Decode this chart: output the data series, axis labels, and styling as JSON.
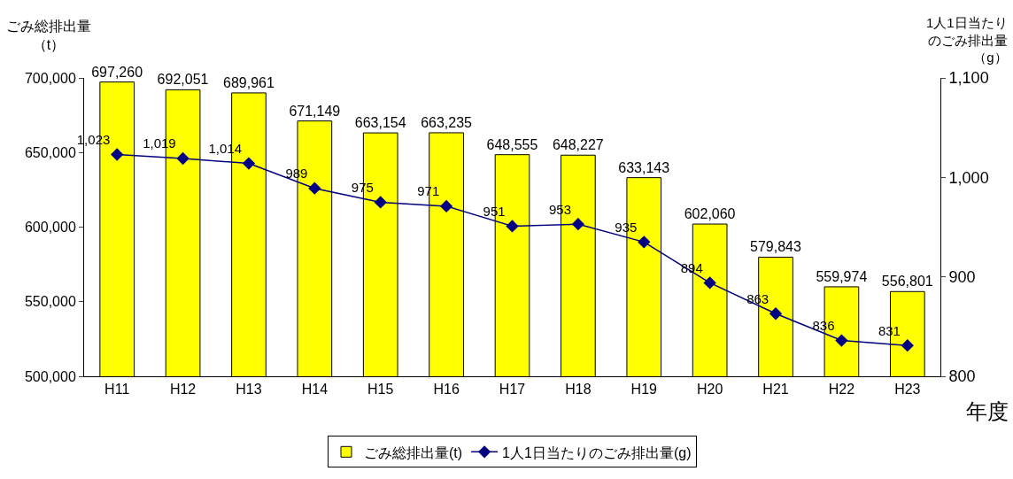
{
  "chart_data": {
    "type": "bar",
    "ylabel": "ごみ総排出量（t）",
    "y2label": "1人1日当たりのごみ排出量（g）",
    "xlabel": "年度",
    "categories": [
      "H11",
      "H12",
      "H13",
      "H14",
      "H15",
      "H16",
      "H17",
      "H18",
      "H19",
      "H20",
      "H21",
      "H22",
      "H23"
    ],
    "series": [
      {
        "name": "ごみ総排出量(t)",
        "color": "#ffff00",
        "values": [
          697260,
          692051,
          689961,
          671149,
          663154,
          663235,
          648555,
          648227,
          633143,
          602060,
          579843,
          559974,
          556801
        ],
        "value_labels": [
          "697,260",
          "692,051",
          "689,961",
          "671,149",
          "663,154",
          "663,235",
          "648,555",
          "648,227",
          "633,143",
          "602,060",
          "579,843",
          "559,974",
          "556,801"
        ]
      },
      {
        "name": "1人1日当たりのごみ排出量(g)",
        "type": "line",
        "axis": "y2",
        "color": "#000080",
        "marker": "diamond",
        "values": [
          1023,
          1019,
          1014,
          989,
          975,
          971,
          951,
          953,
          935,
          894,
          863,
          836,
          831
        ],
        "value_labels": [
          "1,023",
          "1,019",
          "1,014",
          "989",
          "975",
          "971",
          "951",
          "953",
          "935",
          "894",
          "863",
          "836",
          "831"
        ]
      }
    ],
    "ylim": [
      500000,
      700000
    ],
    "yticks": [
      {
        "value": 500000,
        "label": "500,000"
      },
      {
        "value": 550000,
        "label": "550,000"
      },
      {
        "value": 600000,
        "label": "600,000"
      },
      {
        "value": 650000,
        "label": "650,000"
      },
      {
        "value": 700000,
        "label": "700,000"
      }
    ],
    "y2lim": [
      800,
      1100
    ],
    "y2ticks": [
      {
        "value": 800,
        "label": "800"
      },
      {
        "value": 900,
        "label": "900"
      },
      {
        "value": 1000,
        "label": "1,000"
      },
      {
        "value": 1100,
        "label": "1,100"
      }
    ],
    "grid": false,
    "legend": "bottom"
  }
}
